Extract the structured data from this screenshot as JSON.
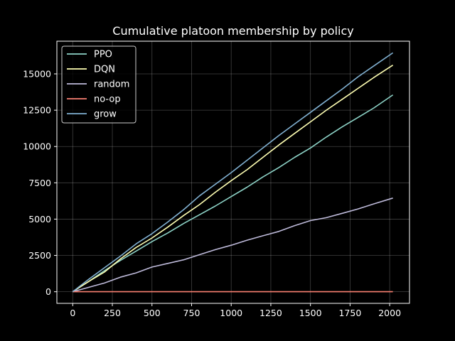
{
  "chart_data": {
    "type": "line",
    "title": "Cumulative platoon membership by policy",
    "xlabel": "",
    "ylabel": "",
    "xlim": [
      -100,
      2125
    ],
    "ylim": [
      -800,
      17250
    ],
    "xticks": [
      0,
      250,
      500,
      750,
      1000,
      1250,
      1500,
      1750,
      2000
    ],
    "yticks": [
      0,
      2500,
      5000,
      7500,
      10000,
      12500,
      15000
    ],
    "x": [
      0,
      100,
      200,
      300,
      400,
      500,
      600,
      700,
      800,
      900,
      1000,
      1100,
      1200,
      1300,
      1400,
      1500,
      1600,
      1700,
      1800,
      1900,
      2020
    ],
    "series": [
      {
        "name": "PPO",
        "color": "#8dd3c7",
        "values": [
          0,
          700,
          1450,
          2150,
          2800,
          3450,
          4050,
          4700,
          5300,
          5900,
          6550,
          7200,
          7900,
          8550,
          9250,
          9900,
          10650,
          11350,
          12000,
          12650,
          13550
        ]
      },
      {
        "name": "DQN",
        "color": "#ffffb3",
        "values": [
          0,
          700,
          1350,
          2250,
          3050,
          3700,
          4450,
          5250,
          6000,
          6850,
          7650,
          8400,
          9250,
          10100,
          10900,
          11700,
          12500,
          13250,
          14000,
          14750,
          15600
        ]
      },
      {
        "name": "random",
        "color": "#bebada",
        "values": [
          0,
          300,
          600,
          1000,
          1300,
          1700,
          1950,
          2200,
          2550,
          2900,
          3200,
          3550,
          3850,
          4150,
          4550,
          4900,
          5100,
          5400,
          5700,
          6050,
          6450
        ]
      },
      {
        "name": "no-op",
        "color": "#fa8072",
        "values": [
          0,
          0,
          0,
          0,
          0,
          0,
          0,
          0,
          0,
          0,
          0,
          0,
          0,
          0,
          0,
          0,
          0,
          0,
          0,
          0,
          0
        ]
      },
      {
        "name": "grow",
        "color": "#81b1d2",
        "values": [
          0,
          850,
          1650,
          2450,
          3300,
          4000,
          4800,
          5650,
          6600,
          7400,
          8200,
          9050,
          9900,
          10750,
          11550,
          12350,
          13150,
          13950,
          14800,
          15550,
          16450
        ]
      }
    ],
    "grid": true,
    "legend": "top-left"
  }
}
